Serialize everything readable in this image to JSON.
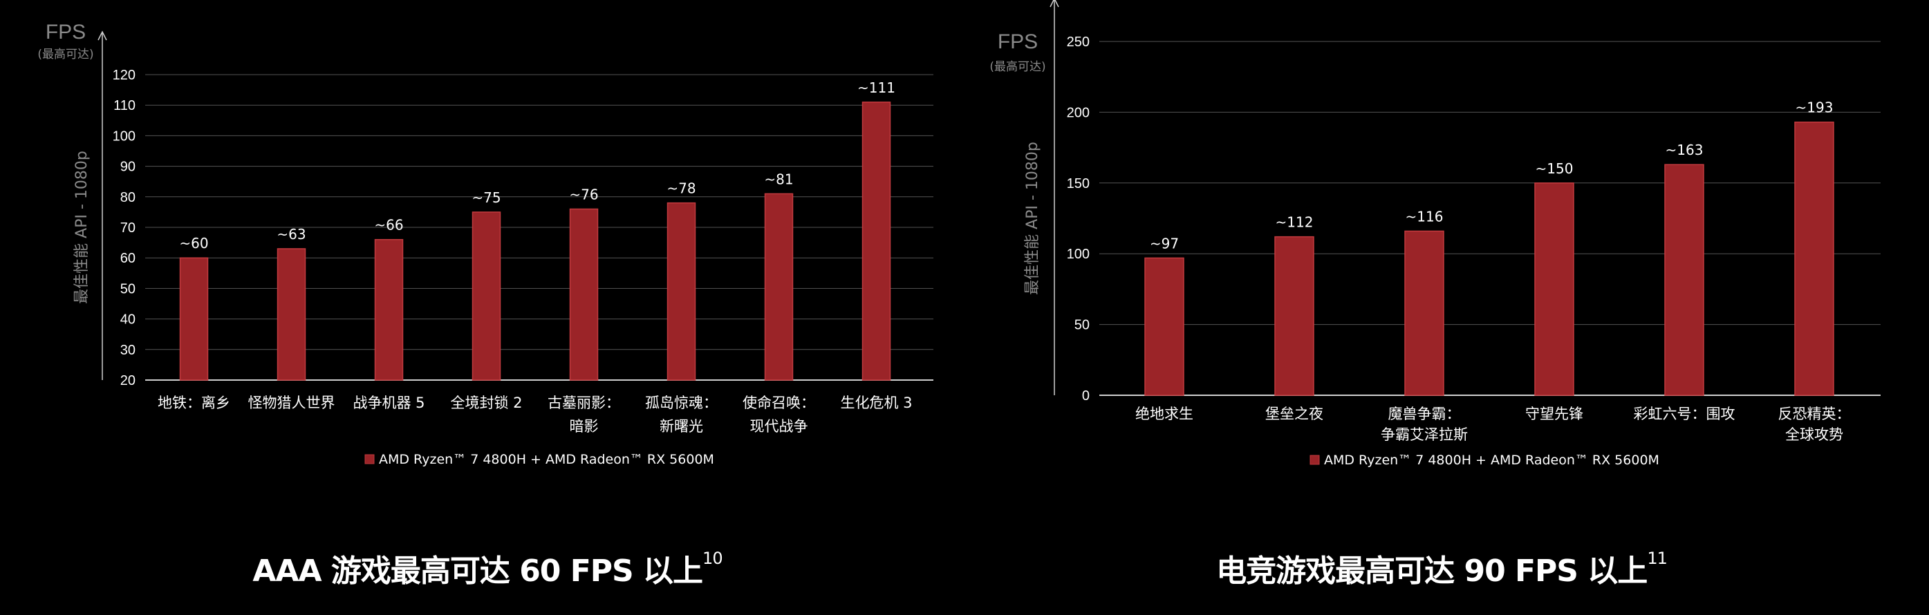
{
  "colors": {
    "bar": "#9b2428",
    "bar_edge": "#c23a3e",
    "grid": "#555555",
    "axis": "#d0d0d0",
    "muted": "#8a8a8a"
  },
  "chart_data": [
    {
      "type": "bar",
      "title": "",
      "xlabel": "",
      "ylabel": "最佳性能 API - 1080p",
      "y_unit": "FPS",
      "y_unit_note": "(最高可达)",
      "ylim": [
        20,
        120
      ],
      "yticks": [
        20,
        30,
        40,
        50,
        60,
        70,
        80,
        90,
        100,
        110,
        120
      ],
      "grid": true,
      "legend_position": "bottom",
      "categories": [
        [
          "地铁：离乡"
        ],
        [
          "怪物猎人世界"
        ],
        [
          "战争机器 5"
        ],
        [
          "全境封锁 2"
        ],
        [
          "古墓丽影：",
          "暗影"
        ],
        [
          "孤岛惊魂：",
          "新曙光"
        ],
        [
          "使命召唤：",
          "现代战争"
        ],
        [
          "生化危机 3"
        ]
      ],
      "series": [
        {
          "name": "AMD Ryzen™ 7 4800H + AMD Radeon™ RX 5600M",
          "values": [
            60,
            63,
            66,
            75,
            76,
            78,
            81,
            111
          ]
        }
      ],
      "data_labels": [
        "~60",
        "~63",
        "~66",
        "~75",
        "~76",
        "~78",
        "~81",
        "~111"
      ]
    },
    {
      "type": "bar",
      "title": "",
      "xlabel": "",
      "ylabel": "最佳性能 API - 1080p",
      "y_unit": "FPS",
      "y_unit_note": "(最高可达)",
      "ylim": [
        0,
        250
      ],
      "yticks": [
        0,
        50,
        100,
        150,
        200,
        250
      ],
      "grid": true,
      "legend_position": "bottom",
      "categories": [
        [
          "绝地求生"
        ],
        [
          "堡垒之夜"
        ],
        [
          "魔兽争霸：",
          "争霸艾泽拉斯"
        ],
        [
          "守望先锋"
        ],
        [
          "彩虹六号：围攻"
        ],
        [
          "反恐精英：",
          "全球攻势"
        ]
      ],
      "series": [
        {
          "name": "AMD Ryzen™ 7 4800H + AMD Radeon™ RX 5600M",
          "values": [
            97,
            112,
            116,
            150,
            163,
            193
          ]
        }
      ],
      "data_labels": [
        "~97",
        "~112",
        "~116",
        "~150",
        "~163",
        "~193"
      ]
    }
  ],
  "captions": [
    {
      "text": "AAA 游戏最高可达 60 FPS 以上",
      "footnote": "10"
    },
    {
      "text": "电竞游戏最高可达 90 FPS 以上",
      "footnote": "11"
    }
  ]
}
